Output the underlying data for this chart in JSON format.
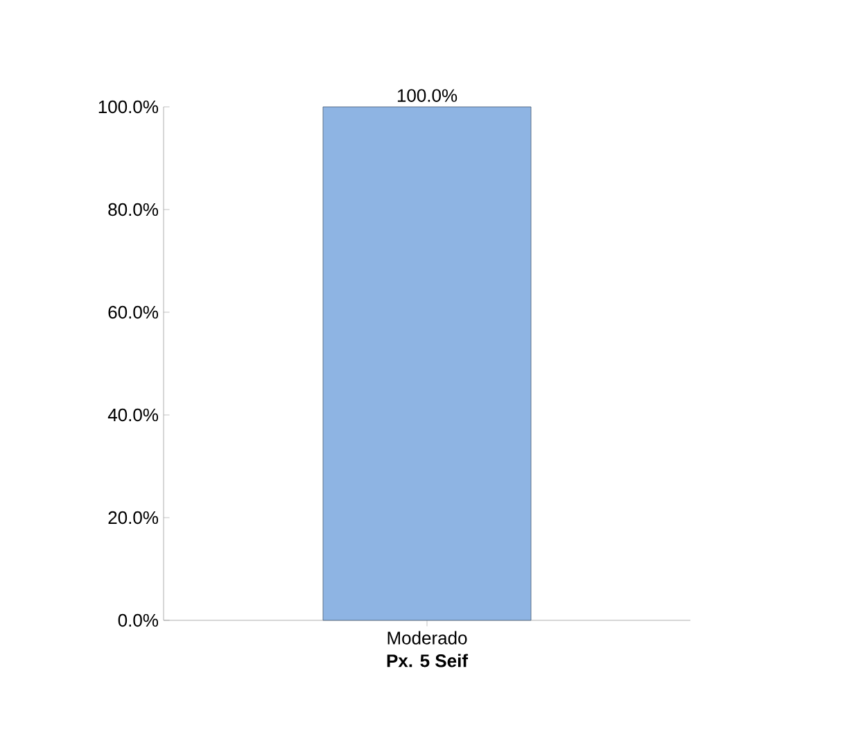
{
  "chart_data": {
    "type": "bar",
    "categories": [
      "Moderado"
    ],
    "values": [
      100
    ],
    "value_labels": [
      "100.0%"
    ],
    "color": "#8eb4e3",
    "xlabel": "Px. 5 Seif",
    "ylim": [
      0,
      100
    ],
    "yticks": [
      {
        "value": 0,
        "label": "0.0%"
      },
      {
        "value": 20,
        "label": "20.0%"
      },
      {
        "value": 40,
        "label": "40.0%"
      },
      {
        "value": 60,
        "label": "60.0%"
      },
      {
        "value": 80,
        "label": "80.0%"
      },
      {
        "value": 100,
        "label": "100.0%"
      }
    ]
  }
}
